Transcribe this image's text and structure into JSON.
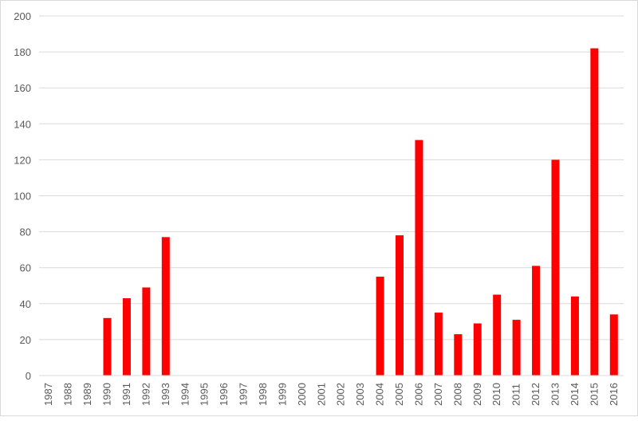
{
  "chart_data": {
    "type": "bar",
    "categories": [
      "1987",
      "1988",
      "1989",
      "1990",
      "1991",
      "1992",
      "1993",
      "1994",
      "1995",
      "1996",
      "1997",
      "1998",
      "1999",
      "2000",
      "2001",
      "2002",
      "2003",
      "2004",
      "2005",
      "2006",
      "2007",
      "2008",
      "2009",
      "2010",
      "2011",
      "2012",
      "2013",
      "2014",
      "2015",
      "2016"
    ],
    "values": [
      0,
      0,
      0,
      32,
      43,
      49,
      77,
      0,
      0,
      0,
      0,
      0,
      0,
      0,
      0,
      0,
      0,
      55,
      78,
      131,
      35,
      23,
      29,
      45,
      31,
      61,
      120,
      44,
      182,
      34
    ],
    "yticks": [
      "0",
      "20",
      "40",
      "60",
      "80",
      "100",
      "120",
      "140",
      "160",
      "180",
      "200"
    ],
    "ylim": [
      0,
      200
    ],
    "grid": true,
    "bar_color": "#ff0000",
    "grid_color": "#d9d9d9",
    "title": "",
    "xlabel": "",
    "ylabel": ""
  }
}
